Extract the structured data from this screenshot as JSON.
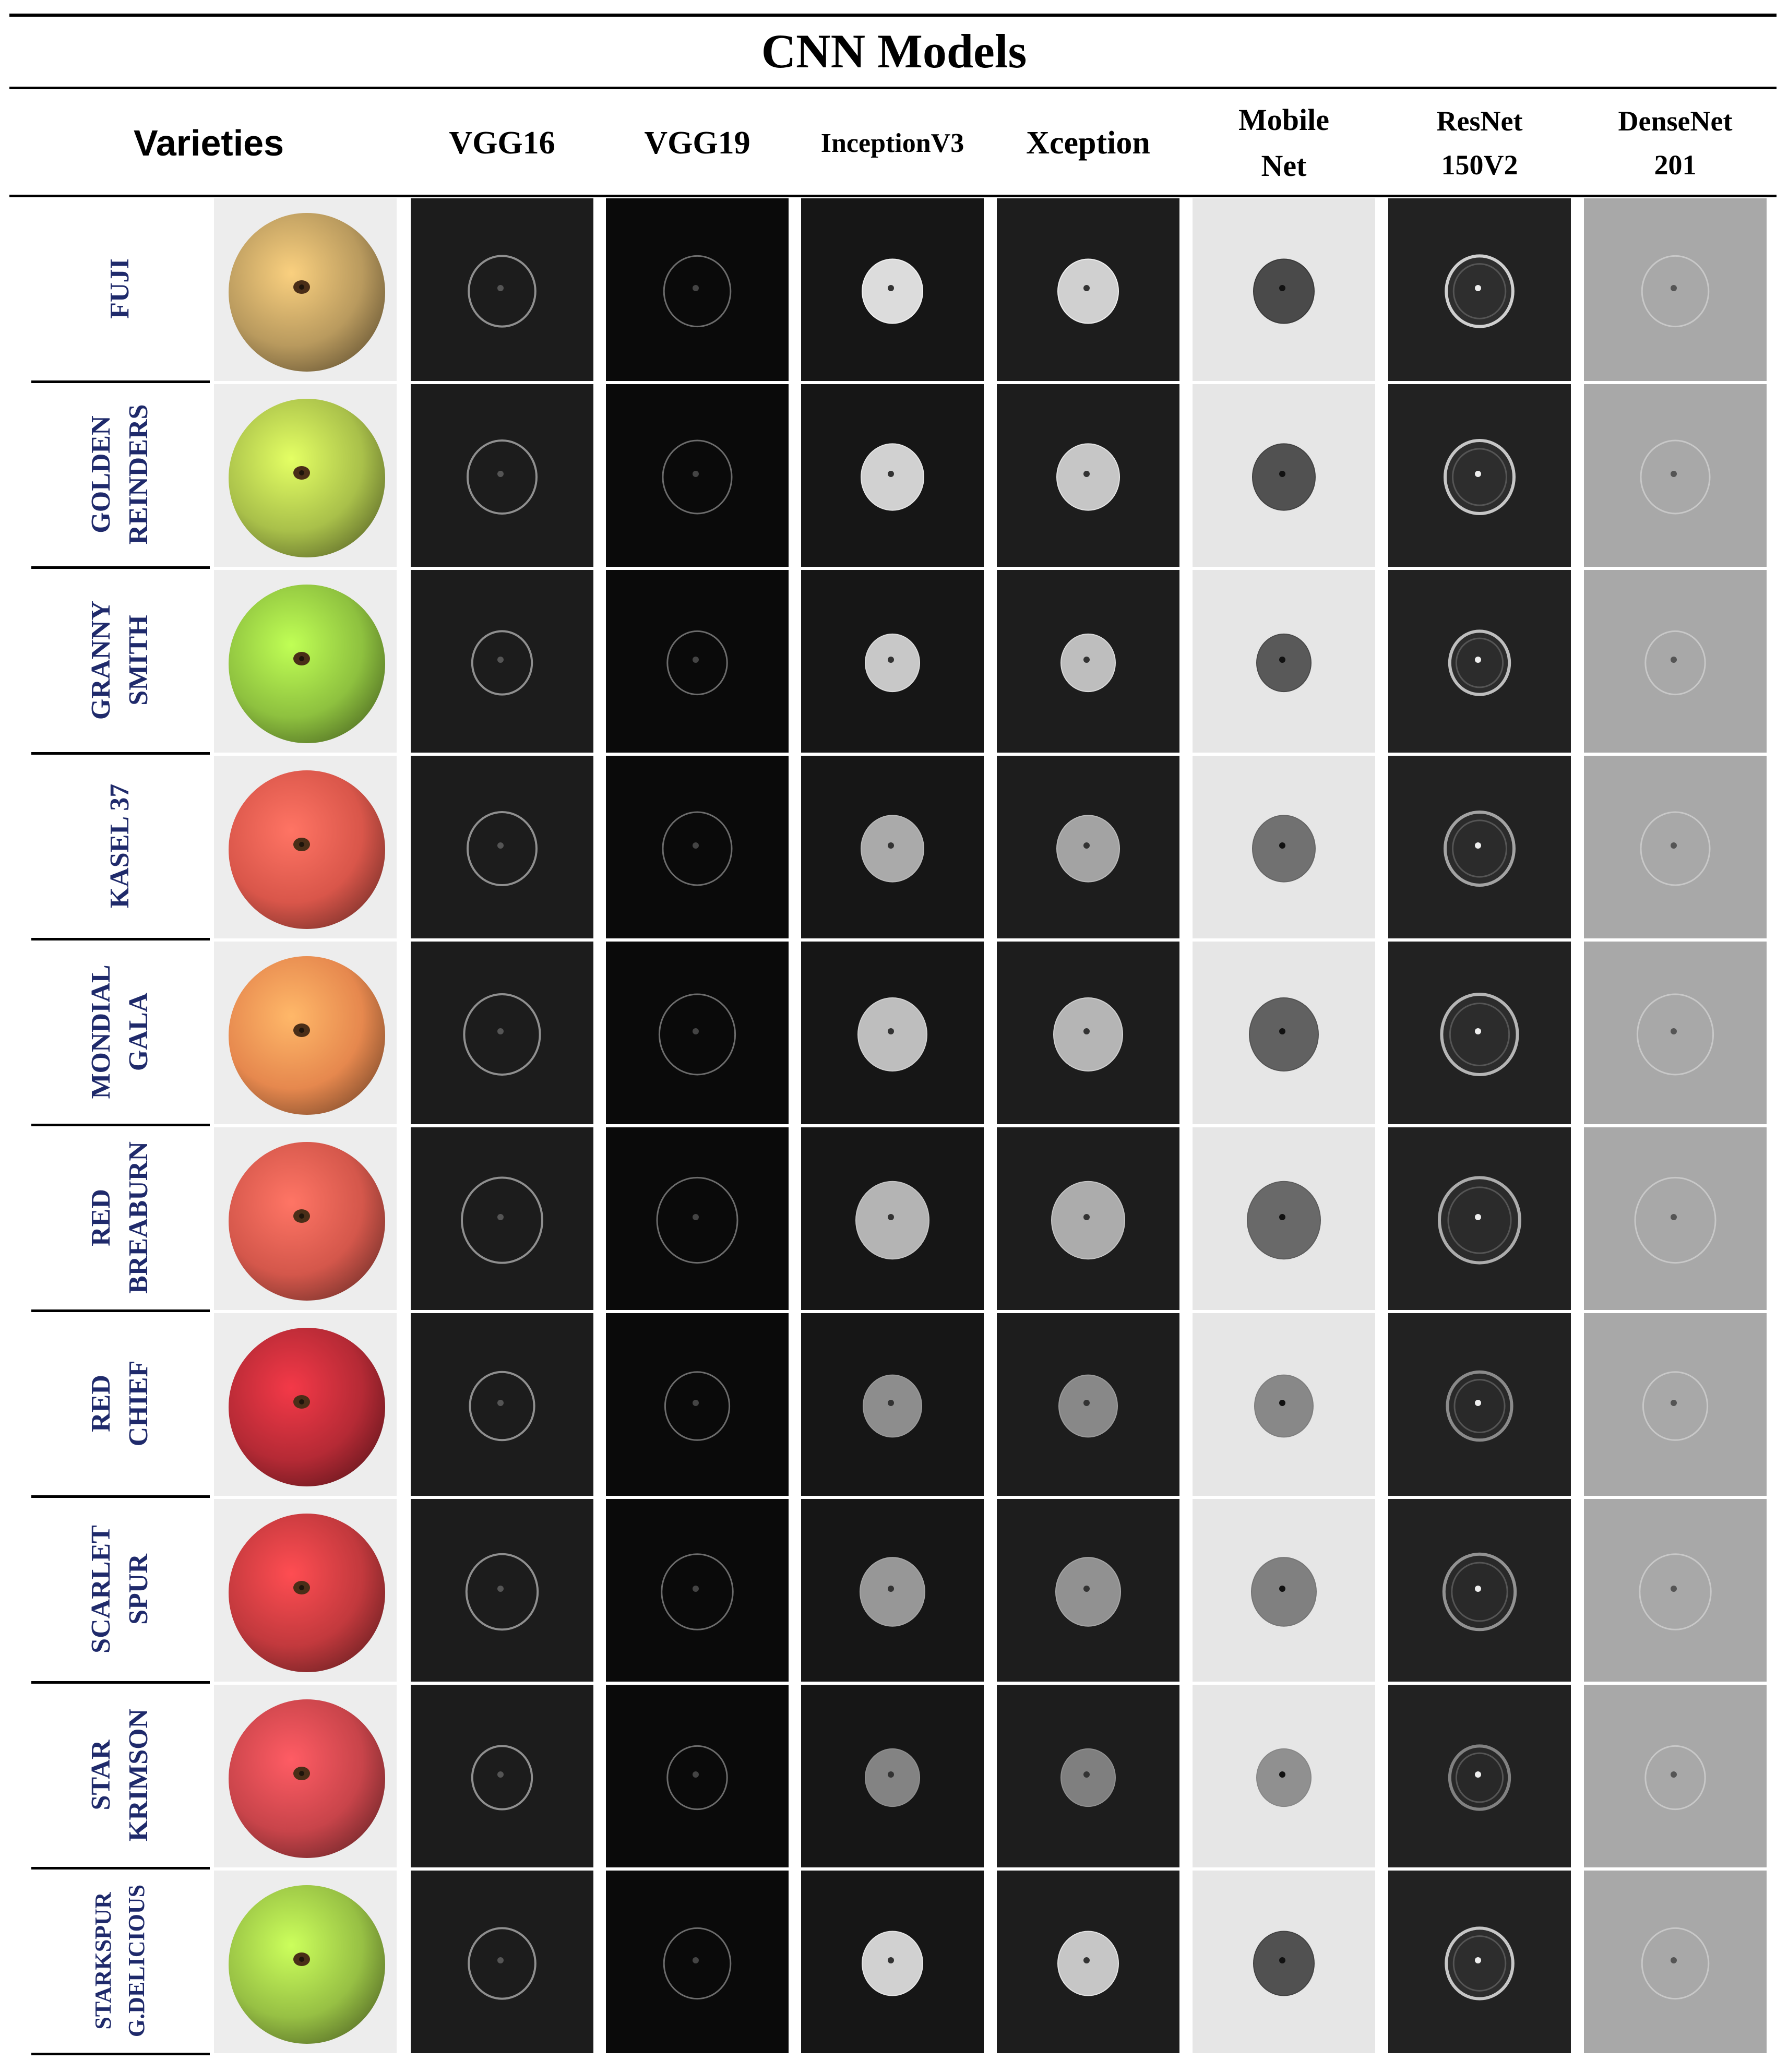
{
  "title": "CNN Models",
  "columns": {
    "varieties": "Varieties",
    "models": [
      {
        "lines": [
          "VGG16"
        ]
      },
      {
        "lines": [
          "VGG19"
        ]
      },
      {
        "lines": [
          "InceptionV3"
        ]
      },
      {
        "lines": [
          "Xception"
        ]
      },
      {
        "lines": [
          "Mobile",
          "Net"
        ]
      },
      {
        "lines": [
          "ResNet",
          "150V2"
        ]
      },
      {
        "lines": [
          "DenseNet",
          "201"
        ]
      }
    ]
  },
  "varieties": [
    {
      "lines": [
        "FUJI"
      ],
      "apple_color": "#b99a5e"
    },
    {
      "lines": [
        "GOLDEN",
        "REINDERS"
      ],
      "apple_color": "#a9c04a"
    },
    {
      "lines": [
        "GRANNY",
        "SMITH"
      ],
      "apple_color": "#8ec13f"
    },
    {
      "lines": [
        "KASEL 37"
      ],
      "apple_color": "#d9564a"
    },
    {
      "lines": [
        "MONDIAL",
        "GALA"
      ],
      "apple_color": "#e6884e"
    },
    {
      "lines": [
        "RED",
        "BREABURN"
      ],
      "apple_color": "#d4574b"
    },
    {
      "lines": [
        "RED",
        "CHIEF"
      ],
      "apple_color": "#b52a35"
    },
    {
      "lines": [
        "SCARLET",
        "SPUR"
      ],
      "apple_color": "#c2393d"
    },
    {
      "lines": [
        "STAR",
        "KRIMSON"
      ],
      "apple_color": "#c8444a"
    },
    {
      "lines": [
        "STARKSPUR",
        "G.DELICIOUS"
      ],
      "apple_color": "#97c044"
    }
  ],
  "colors": {
    "label_text": "#1f2a6b",
    "rule": "#000000"
  }
}
